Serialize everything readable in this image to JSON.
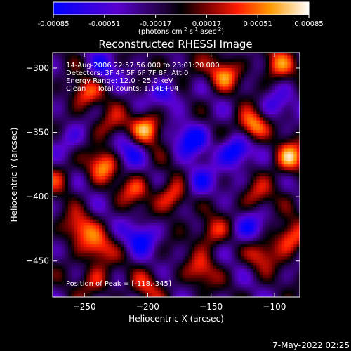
{
  "colorbar": {
    "ticks": [
      "-0.00085",
      "-0.00051",
      "-0.00017",
      "0.00017",
      "0.00051",
      "0.00085"
    ],
    "unit_main": "(photons cm",
    "unit_exp1": "-2",
    "unit_mid": " s",
    "unit_exp2": "-1",
    "unit_end": " asec",
    "unit_exp3": "-2",
    "unit_close": ")"
  },
  "chart_data": {
    "type": "heatmap",
    "title": "Reconstructed RHESSI Image",
    "xlabel": "Heliocentric X (arcsec)",
    "ylabel": "Heliocentric Y (arcsec)",
    "xlim": [
      -275,
      -80
    ],
    "ylim": [
      -478,
      -288
    ],
    "x_ticks": [
      -250,
      -200,
      -150,
      -100
    ],
    "y_ticks": [
      -300,
      -350,
      -400,
      -450
    ],
    "x_tick_labels": [
      "−250",
      "−200",
      "−150",
      "−100"
    ],
    "y_tick_labels": [
      "−300",
      "−350",
      "−400",
      "−450"
    ],
    "value_range": [
      -0.00085,
      0.00085
    ],
    "annotations": [
      "14-Aug-2006 22:57:56.000 to 23:01:20.000",
      "Detectors: 3F 4F 5F 6F 7F 8F, Att 0",
      "Energy Range: 12.0 - 25.0 keV",
      "Clean     Total counts: 1.14E+04"
    ],
    "peak_label": "Position of Peak = [-118,-345]",
    "peak": [
      -118,
      -345
    ],
    "hotspots": [
      {
        "x": -118,
        "y": -345,
        "v": 0.00085
      },
      {
        "x": -200,
        "y": -347,
        "v": 0.00075
      },
      {
        "x": -235,
        "y": -375,
        "v": 0.0007
      },
      {
        "x": -88,
        "y": -370,
        "v": 0.0008
      },
      {
        "x": -250,
        "y": -320,
        "v": 0.0006
      },
      {
        "x": -180,
        "y": -400,
        "v": 0.00068
      },
      {
        "x": -140,
        "y": -305,
        "v": 0.00065
      },
      {
        "x": -98,
        "y": -298,
        "v": 0.0006
      },
      {
        "x": -255,
        "y": -425,
        "v": 0.00062
      },
      {
        "x": -240,
        "y": -440,
        "v": 0.0006
      },
      {
        "x": -150,
        "y": -428,
        "v": 0.00055
      },
      {
        "x": -210,
        "y": -395,
        "v": 0.0005
      },
      {
        "x": -200,
        "y": -470,
        "v": 0.0004
      },
      {
        "x": -158,
        "y": -458,
        "v": 0.0005
      },
      {
        "x": -115,
        "y": -400,
        "v": 0.00045
      },
      {
        "x": -88,
        "y": -432,
        "v": 0.0007
      },
      {
        "x": -240,
        "y": -465,
        "v": 0.00045
      },
      {
        "x": -272,
        "y": -385,
        "v": 0.0004
      },
      {
        "x": -110,
        "y": -445,
        "v": 0.0005
      },
      {
        "x": -170,
        "y": -300,
        "v": 0.0003
      },
      {
        "x": -230,
        "y": -345,
        "v": 0.00045
      },
      {
        "x": -165,
        "y": -355,
        "v": -0.0007
      },
      {
        "x": -130,
        "y": -365,
        "v": -0.00085
      },
      {
        "x": -205,
        "y": -432,
        "v": -0.0006
      },
      {
        "x": -120,
        "y": -425,
        "v": -0.00055
      },
      {
        "x": -185,
        "y": -320,
        "v": -0.0005
      },
      {
        "x": -160,
        "y": -390,
        "v": -0.00055
      },
      {
        "x": -235,
        "y": -300,
        "v": -0.0004
      },
      {
        "x": -215,
        "y": -365,
        "v": -0.0005
      },
      {
        "x": -262,
        "y": -355,
        "v": -0.00035
      },
      {
        "x": -100,
        "y": -330,
        "v": -0.0004
      }
    ]
  },
  "footer": {
    "timestamp": "7-May-2022 02:25"
  }
}
